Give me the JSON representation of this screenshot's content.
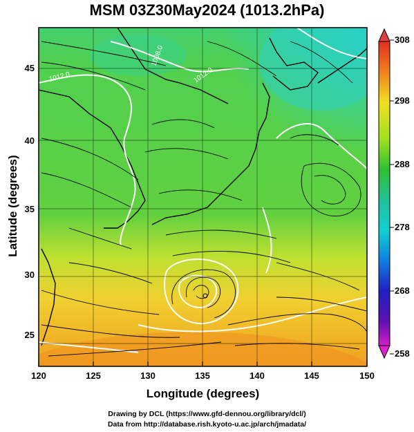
{
  "title": "MSM 03Z30May2024 (1013.2hPa)",
  "map": {
    "xlabel": "Longitude (degrees)",
    "ylabel": "Latitude  (degrees)",
    "lon_ticks": [
      "120",
      "125",
      "130",
      "135",
      "140",
      "145",
      "150"
    ],
    "lat_ticks": [
      "25",
      "30",
      "35",
      "40",
      "45"
    ],
    "lon_range": [
      120,
      150
    ],
    "lat_range": [
      22.4,
      47.6
    ],
    "contour_labels": [
      "1012.0",
      "1008.0",
      "1012.0"
    ],
    "typhoon_center": {
      "lon": 135.1,
      "lat": 28.3
    }
  },
  "colorbar": {
    "ticks": [
      "308",
      "298",
      "288",
      "278",
      "268",
      "258"
    ],
    "range": [
      258,
      308
    ],
    "colors": [
      "#d02cc8",
      "#2020c0",
      "#1080e0",
      "#10d0d0",
      "#20c070",
      "#30c030",
      "#a0e020",
      "#f0e020",
      "#f0a020",
      "#e04020"
    ]
  },
  "footer": {
    "line1": "Drawing by DCL (https://www.gfd-dennou.org/library/dcl/)",
    "line2": "Data from http://database.rish.kyoto-u.ac.jp/arch/jmadata/"
  }
}
